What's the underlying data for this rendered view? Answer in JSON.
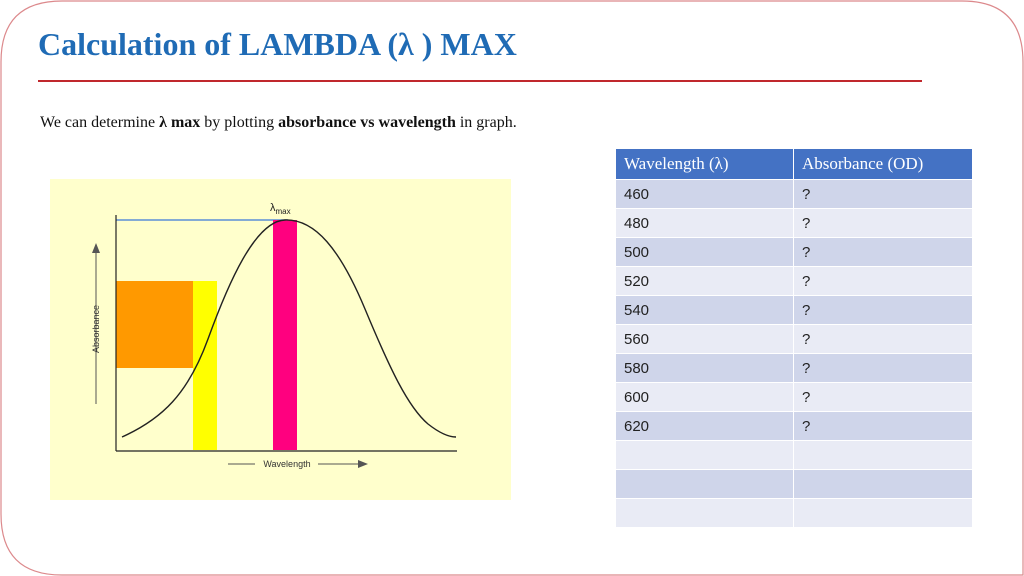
{
  "slide": {
    "title": "Calculation of LAMBDA (λ ) MAX",
    "intro": {
      "part1": "We can determine ",
      "bold1": "λ max",
      "part2": " by plotting ",
      "bold2": "absorbance vs wavelength",
      "part3": " in graph."
    },
    "accent_color": "#1f6bb5",
    "rule_color": "#c0282d"
  },
  "graph": {
    "y_axis_label": "Absorbance",
    "x_axis_label": "Wavelength",
    "peak_label_symbol": "λ",
    "peak_label_sub": "max",
    "colors": {
      "background": "#ffffcc",
      "curve": "#222222",
      "peak_band": "#ff007f",
      "wavelength_band": "#ffff00",
      "absorbance_band": "#ff9900",
      "peak_line": "#5b8fd6"
    }
  },
  "table": {
    "headers": [
      "Wavelength (λ)",
      "Absorbance (OD)"
    ],
    "rows": [
      [
        "460",
        "?"
      ],
      [
        "480",
        "?"
      ],
      [
        "500",
        "?"
      ],
      [
        "520",
        "?"
      ],
      [
        "540",
        "?"
      ],
      [
        "560",
        "?"
      ],
      [
        "580",
        "?"
      ],
      [
        "600",
        "?"
      ],
      [
        "620",
        "?"
      ],
      [
        "",
        ""
      ],
      [
        "",
        ""
      ],
      [
        "",
        ""
      ]
    ],
    "header_color": "#4472c4"
  }
}
